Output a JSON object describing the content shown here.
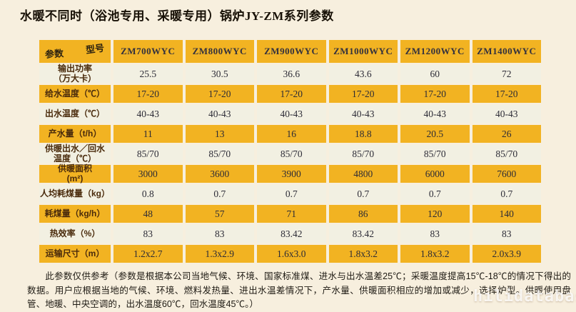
{
  "title": "水暖不同时（浴池专用、采暖专用）锅炉JY-ZM系列参数",
  "table": {
    "corner": {
      "top_label": "型号",
      "bottom_label": "参数"
    },
    "models": [
      "ZM700WYC",
      "ZM800WYC",
      "ZM900WYC",
      "ZM1000WYC",
      "ZM1200WYC",
      "ZM1400WYC"
    ],
    "rows": [
      {
        "label": "输出功率\n（万大卡）",
        "tone": "light",
        "values": [
          "25.5",
          "30.5",
          "36.6",
          "43.6",
          "60",
          "72"
        ]
      },
      {
        "label": "给水温度（℃）",
        "tone": "yellow",
        "values": [
          "17-20",
          "17-20",
          "17-20",
          "17-20",
          "17-20",
          "17-20"
        ]
      },
      {
        "label": "出水温度（℃）",
        "tone": "light",
        "values": [
          "40-43",
          "40-43",
          "40-43",
          "40-43",
          "40-43",
          "40-43"
        ]
      },
      {
        "label": "产水量（t/h）",
        "tone": "yellow",
        "values": [
          "11",
          "13",
          "16",
          "18.8",
          "20.5",
          "26"
        ]
      },
      {
        "label": "供暖出水／回水\n温度（℃）",
        "tone": "light",
        "values": [
          "85/70",
          "85/70",
          "85/70",
          "85/70",
          "85/70",
          "85/70"
        ]
      },
      {
        "label": "供暖面积\n(m²)",
        "tone": "yellow",
        "values": [
          "3000",
          "3600",
          "3900",
          "4800",
          "6000",
          "7600"
        ]
      },
      {
        "label": "人均耗煤量（kg）",
        "tone": "light",
        "values": [
          "0.8",
          "0.7",
          "0.7",
          "0.7",
          "0.7",
          "0.7"
        ]
      },
      {
        "label": "耗煤量（kg/h）",
        "tone": "yellow",
        "values": [
          "48",
          "57",
          "71",
          "86",
          "120",
          "140"
        ]
      },
      {
        "label": "热效率（%）",
        "tone": "light",
        "values": [
          "83",
          "83",
          "83.42",
          "83.42",
          "83",
          "83"
        ]
      },
      {
        "label": "运输尺寸（m）",
        "tone": "yellow",
        "values": [
          "1.2x2.7",
          "1.3x2.9",
          "1.6x3.0",
          "1.8x3.2",
          "1.8x3.2",
          "2.0x3.9"
        ]
      }
    ]
  },
  "footnote": "此参数仅供参考（参数是根据本公司当地气候、环境、国家标准煤、进水与出水温差25℃；采暖温度提高15℃-18℃的情况下得出的数据。用户应根据当地的气候、环境、燃料发热量、进出水温差情况下，产水量、供暖面积相应的增加或减少，选择炉型。供暖使用盘管、地暖、中央空调的，出水温度60℃，回水温度45℃。）",
  "watermark": "hilidatabase.com",
  "colors": {
    "accent_yellow": "#F2B322",
    "page_bg": "#F7EFDE",
    "light_row": "#F2F0E2"
  }
}
